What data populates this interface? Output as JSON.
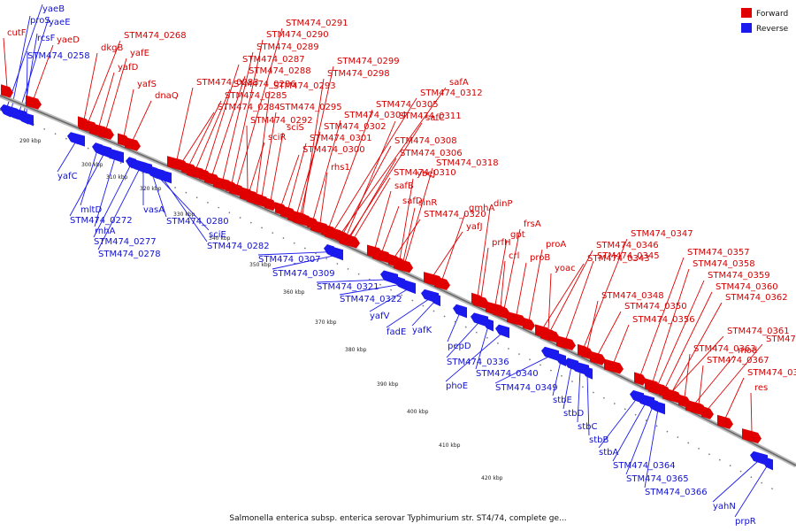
{
  "caption": "Salmonella enterica subsp. enterica serovar Typhimurium str. ST4/74, complete ge...",
  "legend": [
    {
      "label": "Forward",
      "color": "#e00000"
    },
    {
      "label": "Reverse",
      "color": "#1a1aee"
    }
  ],
  "colors": {
    "forward": "#e00000",
    "reverse": "#1a1aee",
    "backbone": "#999999"
  },
  "ticks": [
    "290 kbp",
    "300 kbp",
    "310 kbp",
    "320 kbp",
    "330 kbp",
    "340 kbp",
    "350 kbp",
    "360 kbp",
    "370 kbp",
    "380 kbp",
    "390 kbp",
    "400 kbp",
    "410 kbp",
    "420 kbp"
  ],
  "forward_genes": [
    "cutF",
    "yaeD",
    "STM474_0268",
    "dkgB",
    "yafE",
    "yafD",
    "yafS",
    "dnaQ",
    "STM474_0283",
    "STM474_0284",
    "STM474_0285",
    "STM474_0286",
    "STM474_0287",
    "STM474_0288",
    "STM474_0289",
    "STM474_0290",
    "STM474_0291",
    "STM474_0293",
    "STM474_0292",
    "STM474_0295",
    "sciR",
    "sciS",
    "STM474_0299",
    "STM474_0298",
    "STM474_0300",
    "STM474_0301",
    "STM474_0302",
    "STM474_0304",
    "STM474_0305",
    "STM474_0312",
    "safA",
    "STM474_0311",
    "safC",
    "STM474_0308",
    "STM474_0306",
    "rhs1",
    "STM474_0310",
    "safB",
    "safD",
    "ybeJ",
    "STM474_0318",
    "sinR",
    "STM474_0320",
    "gmhA",
    "yafJ",
    "dinP",
    "prfH",
    "gpt",
    "frsA",
    "crl",
    "proB",
    "proA",
    "STM474_0343",
    "STM474_0346",
    "STM474_0347",
    "yoac",
    "STM474_0345",
    "STM474_0348",
    "STM474_0350",
    "STM474_0356",
    "STM474_0357",
    "STM474_0358",
    "STM474_0359",
    "STM474_0360",
    "STM474_0362",
    "STM474_0361",
    "STM474_0363",
    "STM474_0367",
    "mod",
    "STM474_0368",
    "STM474_0370",
    "res"
  ],
  "reverse_genes": [
    "yaeB",
    "proS",
    "yaeE",
    "rcsF",
    "STM474_0258",
    "yafC",
    "mltD",
    "STM474_0272",
    "rnhA",
    "STM474_0277",
    "STM474_0278",
    "vasA",
    "STM474_0280",
    "sciE",
    "STM474_0282",
    "STM474_0307",
    "STM474_0309",
    "STM474_0321",
    "STM474_0322",
    "yafV",
    "fadE",
    "yafK",
    "pepD",
    "STM474_0336",
    "STM474_0340",
    "phoE",
    "STM474_0349",
    "stbE",
    "stbD",
    "stbC",
    "stbB",
    "stbA",
    "STM474_0364",
    "STM474_0365",
    "STM474_0366",
    "yahN",
    "prpR"
  ]
}
